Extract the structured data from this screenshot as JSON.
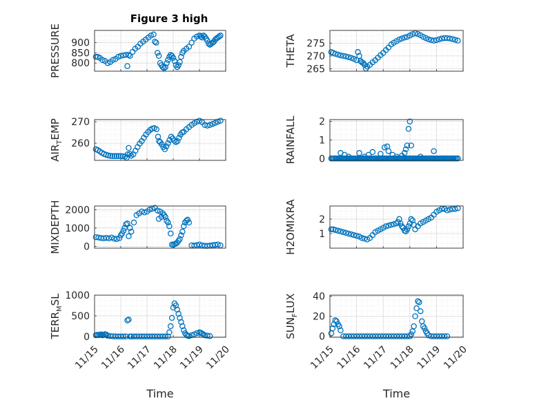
{
  "figure_title": "Figure 3 high",
  "colors": {
    "marker": "#0072BD",
    "axis": "#262626",
    "grid": "#d9d9d9"
  },
  "chart_data": [
    {
      "type": "scatter",
      "title": "Figure 3 high",
      "xlabel": "",
      "ylabel": "PRESSURE",
      "ylim": [
        760,
        960
      ],
      "yticks": [
        "800",
        "850",
        "900"
      ],
      "yticks_num": [
        800,
        850,
        900
      ],
      "xlim": [
        0,
        5
      ],
      "grid": true,
      "x": [
        0.05,
        0.12,
        0.2,
        0.3,
        0.4,
        0.5,
        0.6,
        0.7,
        0.8,
        0.9,
        1.0,
        1.1,
        1.2,
        1.25,
        1.3,
        1.35,
        1.45,
        1.55,
        1.65,
        1.75,
        1.85,
        1.95,
        2.05,
        2.15,
        2.25,
        2.3,
        2.35,
        2.4,
        2.45,
        2.5,
        2.55,
        2.6,
        2.65,
        2.7,
        2.75,
        2.8,
        2.85,
        2.9,
        2.95,
        3.0,
        3.05,
        3.1,
        3.15,
        3.2,
        3.25,
        3.3,
        3.35,
        3.4,
        3.5,
        3.6,
        3.7,
        3.8,
        3.9,
        4.0,
        4.05,
        4.1,
        4.15,
        4.2,
        4.25,
        4.3,
        4.35,
        4.4,
        4.45,
        4.5,
        4.55,
        4.6,
        4.65,
        4.7,
        4.75,
        4.8
      ],
      "y": [
        830,
        830,
        825,
        815,
        810,
        800,
        805,
        815,
        820,
        830,
        835,
        838,
        840,
        785,
        840,
        835,
        855,
        870,
        880,
        895,
        905,
        915,
        925,
        935,
        940,
        905,
        900,
        850,
        835,
        800,
        790,
        780,
        775,
        780,
        800,
        815,
        830,
        840,
        835,
        825,
        810,
        790,
        780,
        790,
        805,
        830,
        850,
        860,
        870,
        880,
        900,
        920,
        930,
        935,
        930,
        925,
        935,
        930,
        920,
        910,
        895,
        890,
        895,
        900,
        905,
        915,
        920,
        925,
        930,
        935
      ]
    },
    {
      "type": "scatter",
      "xlabel": "",
      "ylabel": "THETA",
      "ylim": [
        264,
        280
      ],
      "yticks": [
        "265",
        "270",
        "275"
      ],
      "yticks_num": [
        265,
        270,
        275
      ],
      "xlim": [
        0,
        5
      ],
      "grid": true,
      "x": [
        0.05,
        0.12,
        0.2,
        0.3,
        0.4,
        0.5,
        0.6,
        0.7,
        0.8,
        0.9,
        1.0,
        1.05,
        1.1,
        1.15,
        1.2,
        1.25,
        1.3,
        1.35,
        1.4,
        1.5,
        1.6,
        1.7,
        1.8,
        1.9,
        2.0,
        2.1,
        2.2,
        2.3,
        2.4,
        2.5,
        2.6,
        2.7,
        2.8,
        2.9,
        3.0,
        3.1,
        3.2,
        3.3,
        3.4,
        3.5,
        3.6,
        3.7,
        3.8,
        3.9,
        4.0,
        4.1,
        4.2,
        4.3,
        4.4,
        4.5,
        4.6,
        4.7,
        4.8
      ],
      "y": [
        271.5,
        271.2,
        270.8,
        270.5,
        270.2,
        270,
        269.8,
        269.5,
        269.2,
        268.8,
        268.3,
        271.5,
        270,
        268,
        267.5,
        267.2,
        266.5,
        265,
        265.8,
        266.5,
        267.5,
        268.3,
        269.3,
        270.3,
        271.2,
        272.3,
        273.3,
        274.5,
        275.2,
        275.8,
        276.4,
        276.8,
        277.2,
        277.5,
        278,
        278.5,
        278.9,
        278.6,
        278.1,
        277.5,
        277,
        276.5,
        276.2,
        276,
        276.2,
        276.5,
        276.8,
        277,
        277,
        276.8,
        276.6,
        276.3,
        276
      ]
    },
    {
      "type": "scatter",
      "xlabel": "",
      "ylabel": "AIR_TEMP",
      "ylabel_main": "AIR",
      "ylabel_sub": "T",
      "ylabel_rest": "EMP",
      "ylim": [
        252,
        271
      ],
      "yticks": [
        "260",
        "270"
      ],
      "yticks_num": [
        260,
        270
      ],
      "xlim": [
        0,
        5
      ],
      "grid": true,
      "x": [
        0.05,
        0.12,
        0.2,
        0.28,
        0.36,
        0.44,
        0.52,
        0.6,
        0.68,
        0.76,
        0.84,
        0.92,
        1.0,
        1.08,
        1.16,
        1.22,
        1.26,
        1.3,
        1.35,
        1.4,
        1.48,
        1.56,
        1.64,
        1.72,
        1.8,
        1.88,
        1.96,
        2.04,
        2.12,
        2.2,
        2.28,
        2.36,
        2.42,
        2.46,
        2.5,
        2.56,
        2.62,
        2.68,
        2.74,
        2.8,
        2.86,
        2.92,
        2.98,
        3.04,
        3.1,
        3.16,
        3.22,
        3.28,
        3.34,
        3.4,
        3.5,
        3.6,
        3.7,
        3.8,
        3.9,
        4.0,
        4.1,
        4.2,
        4.3,
        4.4,
        4.5,
        4.6,
        4.7,
        4.8
      ],
      "y": [
        257.2,
        256.8,
        256.2,
        255.5,
        255,
        254.6,
        254.3,
        254.1,
        254,
        254,
        254,
        254,
        254,
        253.9,
        253.8,
        253.2,
        254.8,
        257.8,
        255,
        254.2,
        254.8,
        256.5,
        258.2,
        259.8,
        261,
        262.5,
        264,
        265.2,
        266.2,
        266.8,
        267,
        266.5,
        263,
        261,
        260.5,
        259.5,
        258.2,
        257.2,
        258.5,
        260,
        261.5,
        263,
        262.2,
        261.2,
        260.5,
        261,
        262.5,
        264,
        265,
        265.3,
        266.5,
        267.5,
        268.5,
        269.3,
        270,
        270.5,
        269.8,
        268.5,
        268.2,
        268.5,
        269,
        269.5,
        270,
        270.5
      ]
    },
    {
      "type": "scatter",
      "xlabel": "",
      "ylabel": "RAINFALL",
      "ylim": [
        -0.1,
        2.1
      ],
      "yticks": [
        "0",
        "1",
        "2"
      ],
      "yticks_num": [
        0,
        1,
        2
      ],
      "xlim": [
        0,
        5
      ],
      "grid": true,
      "x": [
        0.05,
        0.1,
        0.15,
        0.2,
        0.25,
        0.3,
        0.35,
        0.4,
        0.45,
        0.5,
        0.55,
        0.6,
        0.65,
        0.7,
        0.75,
        0.8,
        0.85,
        0.9,
        0.95,
        1.0,
        1.05,
        1.1,
        1.15,
        1.2,
        1.25,
        1.3,
        1.35,
        1.4,
        1.45,
        1.5,
        1.55,
        1.6,
        1.65,
        1.7,
        1.75,
        1.8,
        1.85,
        1.9,
        1.95,
        2.0,
        2.05,
        2.1,
        2.15,
        2.2,
        2.25,
        2.3,
        2.35,
        2.4,
        2.45,
        2.5,
        2.55,
        2.6,
        2.65,
        2.7,
        2.75,
        2.8,
        2.85,
        2.9,
        2.95,
        3.0,
        3.05,
        3.1,
        3.15,
        3.2,
        3.25,
        3.3,
        3.35,
        3.4,
        3.45,
        3.5,
        3.55,
        3.6,
        3.65,
        3.7,
        3.75,
        3.8,
        3.85,
        3.9,
        3.95,
        4.0,
        4.05,
        4.1,
        4.15,
        4.2,
        4.25,
        4.3,
        4.35,
        4.4,
        4.45,
        4.5,
        4.55,
        4.6,
        4.65,
        4.7,
        4.75,
        4.8,
        0.4,
        0.55,
        0.7,
        1.1,
        1.3,
        1.45,
        1.6,
        1.9,
        2.05,
        2.15,
        2.2,
        2.35,
        2.5,
        2.7,
        2.8,
        2.85,
        2.9,
        2.95,
        3.0,
        3.05,
        3.4,
        3.9
      ],
      "y": [
        0,
        0,
        0,
        0,
        0,
        0,
        0,
        0,
        0,
        0,
        0,
        0,
        0,
        0,
        0,
        0,
        0,
        0,
        0,
        0,
        0,
        0,
        0,
        0,
        0,
        0,
        0,
        0,
        0,
        0,
        0,
        0,
        0,
        0,
        0,
        0,
        0,
        0,
        0,
        0,
        0,
        0,
        0,
        0,
        0,
        0,
        0,
        0,
        0,
        0,
        0,
        0,
        0,
        0,
        0,
        0,
        0,
        0,
        0,
        0,
        0,
        0,
        0,
        0,
        0,
        0,
        0,
        0,
        0,
        0,
        0,
        0,
        0,
        0,
        0,
        0,
        0,
        0,
        0,
        0,
        0,
        0,
        0,
        0,
        0,
        0,
        0,
        0,
        0,
        0,
        0,
        0,
        0,
        0,
        0,
        0,
        0.3,
        0.2,
        0.1,
        0.3,
        0.1,
        0.2,
        0.35,
        0.25,
        0.6,
        0.65,
        0.4,
        0.2,
        0.1,
        0.15,
        0.3,
        0.5,
        0.7,
        1.6,
        2.0,
        0.7,
        0.1,
        0.4
      ]
    },
    {
      "type": "scatter",
      "xlabel": "",
      "ylabel": "MIXDEPTH",
      "ylim": [
        -100,
        2200
      ],
      "yticks": [
        "0",
        "1000",
        "2000"
      ],
      "yticks_num": [
        0,
        1000,
        2000
      ],
      "xlim": [
        0,
        5
      ],
      "grid": true,
      "x": [
        0.05,
        0.15,
        0.25,
        0.35,
        0.45,
        0.55,
        0.65,
        0.75,
        0.85,
        0.95,
        1.0,
        1.05,
        1.1,
        1.15,
        1.2,
        1.25,
        1.3,
        1.35,
        1.4,
        1.5,
        1.6,
        1.7,
        1.8,
        1.9,
        2.0,
        2.1,
        2.2,
        2.3,
        2.4,
        2.45,
        2.5,
        2.55,
        2.6,
        2.65,
        2.7,
        2.75,
        2.8,
        2.85,
        2.9,
        2.95,
        3.0,
        3.05,
        3.1,
        3.15,
        3.2,
        3.25,
        3.3,
        3.35,
        3.4,
        3.45,
        3.5,
        3.55,
        3.6,
        3.7,
        3.8,
        3.9,
        4.0,
        4.1,
        4.2,
        4.3,
        4.4,
        4.5,
        4.6,
        4.7,
        4.8
      ],
      "y": [
        500,
        480,
        450,
        440,
        460,
        430,
        480,
        420,
        400,
        450,
        600,
        700,
        850,
        1000,
        1200,
        1250,
        550,
        1000,
        800,
        1300,
        1700,
        1800,
        1900,
        1850,
        1900,
        2000,
        2050,
        2100,
        1950,
        1500,
        1900,
        1600,
        1800,
        1700,
        1600,
        1400,
        1300,
        1100,
        700,
        100,
        80,
        120,
        150,
        200,
        300,
        400,
        600,
        800,
        1100,
        1300,
        1400,
        1450,
        1300,
        50,
        40,
        60,
        100,
        50,
        30,
        20,
        40,
        60,
        80,
        100,
        50
      ]
    },
    {
      "type": "scatter",
      "xlabel": "",
      "ylabel": "H2OMIXRA",
      "ylim": [
        0,
        2.9
      ],
      "yticks": [
        "1",
        "2"
      ],
      "yticks_num": [
        1,
        2
      ],
      "xlim": [
        0,
        5
      ],
      "grid": true,
      "x": [
        0.05,
        0.12,
        0.2,
        0.3,
        0.4,
        0.5,
        0.6,
        0.7,
        0.8,
        0.9,
        1.0,
        1.1,
        1.2,
        1.3,
        1.4,
        1.5,
        1.6,
        1.7,
        1.8,
        1.9,
        2.0,
        2.1,
        2.2,
        2.3,
        2.4,
        2.5,
        2.55,
        2.6,
        2.65,
        2.7,
        2.75,
        2.8,
        2.85,
        2.9,
        2.95,
        3.0,
        3.05,
        3.1,
        3.15,
        3.2,
        3.3,
        3.4,
        3.5,
        3.6,
        3.7,
        3.8,
        3.9,
        4.0,
        4.1,
        4.2,
        4.3,
        4.4,
        4.5,
        4.6,
        4.7,
        4.8
      ],
      "y": [
        1.3,
        1.3,
        1.25,
        1.2,
        1.15,
        1.1,
        1.05,
        1.0,
        0.95,
        0.9,
        0.85,
        0.8,
        0.7,
        0.65,
        0.6,
        0.7,
        0.9,
        1.1,
        1.2,
        1.3,
        1.4,
        1.5,
        1.55,
        1.6,
        1.65,
        1.7,
        1.8,
        2.0,
        1.7,
        1.5,
        1.4,
        1.2,
        1.15,
        1.3,
        1.5,
        1.7,
        2.0,
        1.9,
        1.6,
        1.3,
        1.5,
        1.7,
        1.8,
        1.9,
        2.0,
        2.1,
        2.3,
        2.5,
        2.6,
        2.7,
        2.7,
        2.6,
        2.65,
        2.7,
        2.7,
        2.75
      ]
    },
    {
      "type": "scatter",
      "xlabel": "Time",
      "ylabel": "TERR_MSL",
      "ylabel_main": "TERR",
      "ylabel_sub": "M",
      "ylabel_rest": "SL",
      "ylim": [
        -20,
        1000
      ],
      "yticks": [
        "0",
        "500",
        "1000"
      ],
      "yticks_num": [
        0,
        500,
        1000
      ],
      "xlim": [
        0,
        5
      ],
      "xticks": [
        "11/15",
        "11/16",
        "11/17",
        "11/18",
        "11/19",
        "11/20"
      ],
      "xticks_num": [
        0,
        1,
        2,
        3,
        4,
        5
      ],
      "grid": true,
      "x": [
        0.05,
        0.1,
        0.15,
        0.2,
        0.25,
        0.3,
        0.35,
        0.4,
        0.45,
        0.5,
        0.6,
        0.7,
        0.8,
        0.9,
        1.0,
        1.1,
        1.2,
        1.25,
        1.3,
        1.35,
        1.4,
        1.5,
        1.6,
        1.7,
        1.8,
        1.9,
        2.0,
        2.1,
        2.2,
        2.3,
        2.4,
        2.5,
        2.6,
        2.7,
        2.8,
        2.85,
        2.9,
        2.95,
        3.0,
        3.05,
        3.1,
        3.15,
        3.2,
        3.25,
        3.3,
        3.35,
        3.4,
        3.45,
        3.5,
        3.55,
        3.6,
        3.7,
        3.8,
        3.9,
        4.0,
        4.05,
        4.1,
        4.15,
        4.2,
        4.3,
        4.4
      ],
      "y": [
        30,
        40,
        35,
        45,
        50,
        30,
        40,
        55,
        45,
        20,
        10,
        5,
        0,
        0,
        0,
        0,
        0,
        390,
        410,
        0,
        0,
        0,
        0,
        0,
        0,
        0,
        0,
        0,
        0,
        0,
        0,
        0,
        0,
        0,
        0,
        100,
        250,
        450,
        700,
        800,
        750,
        650,
        550,
        450,
        350,
        250,
        150,
        80,
        40,
        20,
        10,
        30,
        50,
        80,
        100,
        90,
        70,
        50,
        30,
        20,
        10
      ]
    },
    {
      "type": "scatter",
      "xlabel": "Time",
      "ylabel": "SUN_FLUX",
      "ylabel_main": "SUN",
      "ylabel_sub": "F",
      "ylabel_rest": "LUX",
      "ylim": [
        -1,
        41
      ],
      "yticks": [
        "0",
        "20",
        "40"
      ],
      "yticks_num": [
        0,
        20,
        40
      ],
      "xlim": [
        0,
        5
      ],
      "xticks": [
        "11/15",
        "11/16",
        "11/17",
        "11/18",
        "11/19",
        "11/20"
      ],
      "xticks_num": [
        0,
        1,
        2,
        3,
        4,
        5
      ],
      "grid": true,
      "x": [
        0.05,
        0.1,
        0.15,
        0.2,
        0.25,
        0.3,
        0.35,
        0.4,
        0.5,
        0.6,
        0.7,
        0.8,
        0.9,
        1.0,
        1.1,
        1.2,
        1.3,
        1.4,
        1.5,
        1.6,
        1.7,
        1.8,
        1.9,
        2.0,
        2.1,
        2.2,
        2.3,
        2.4,
        2.5,
        2.6,
        2.7,
        2.8,
        2.9,
        3.0,
        3.05,
        3.1,
        3.15,
        3.2,
        3.25,
        3.3,
        3.35,
        3.4,
        3.45,
        3.5,
        3.55,
        3.6,
        3.65,
        3.7,
        3.8,
        3.9,
        4.0,
        4.1,
        4.2,
        4.3,
        4.4
      ],
      "y": [
        3,
        8,
        12,
        16,
        15,
        12,
        10,
        6,
        0,
        0,
        0,
        0,
        0,
        0,
        0,
        0,
        0,
        0,
        0,
        0,
        0,
        0,
        0,
        0,
        0,
        0,
        0,
        0,
        0,
        0,
        0,
        0,
        0,
        0,
        2,
        5,
        10,
        20,
        28,
        35,
        34,
        25,
        15,
        10,
        8,
        5,
        3,
        1,
        0,
        0,
        0,
        0,
        0,
        0,
        0
      ]
    }
  ]
}
